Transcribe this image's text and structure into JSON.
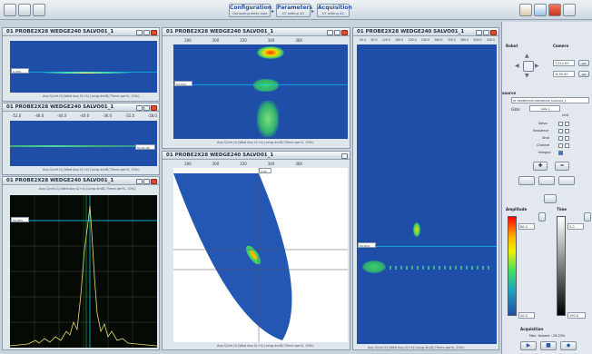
{
  "toolbar": {
    "wizards": [
      {
        "title": "Configuration",
        "subtitle": "Computing delay laws"
      },
      {
        "title": "Parameters",
        "subtitle": "UT setting #1"
      },
      {
        "title": "Acquisition",
        "subtitle": "UT setting #1"
      }
    ]
  },
  "panels": {
    "p1": {
      "title": "01 PROBE2X28 WEDGE240 SALVO01_1",
      "marker": "0.20%",
      "caption": "Acq C(mV,0) (Wed Acq C(+4) (Leng 4mlD,75mm per%, 10%)"
    },
    "p2": {
      "title": "01 PROBE2X28 WEDGE240 SALVO01_1",
      "ticks": [
        "-52.0",
        "-48.0",
        "-44.0",
        "-40.0",
        "-36.0",
        "-32.0",
        "-28.0"
      ],
      "marker": "50.00 dB",
      "caption": "Acq C(mV,0) (Wed Acq C(+4) (Leng 4mlD,75mm per%, 10%)"
    },
    "p3": {
      "title": "01 PROBE2X28 WEDGE240 SALVO01_1",
      "marker": "50.00%",
      "caption": "Acq C(mV,0) (Wed Acq C(+4) (Leng 4mlD,75mm per%, 10%)"
    },
    "p4": {
      "title": "01 PROBE2X28 WEDGE240 SALVO01_1",
      "xticks": [
        "280",
        "300",
        "320",
        "340",
        "360"
      ],
      "marker": "50.00%",
      "caption": "Acq C(mV,0) (Wed Acq C(+4) (Leng 4mlD,75mm per%, 10%)"
    },
    "p5": {
      "title": "01 PROBE2X28 WEDGE240 SALVO01_1",
      "xticks": [
        "280",
        "300",
        "320",
        "340",
        "360"
      ],
      "marker": "0.00",
      "caption": "Acq C(mV,0) (Wed Acq C(+4) (Leng 4mlD,75mm per%, 10%)"
    },
    "p6": {
      "title": "01 PROBE2X28 WEDGE240 SALVO01_1",
      "xticks": [
        "-40.0",
        "80.0",
        "120.0",
        "160.0",
        "200.0",
        "240.0",
        "280.0",
        "320.0",
        "360.0",
        "400.0",
        "440.0"
      ],
      "marker": "50.00%",
      "caption": "Acq C(mV,0) (Wed Acq C(+4) (Leng 4mlD,75mm per%, 10%)"
    }
  },
  "right_panel": {
    "robot_label": "Robot",
    "camera_label": "Camera",
    "cam_x": "7,212.00",
    "cam_y": "-6,92.00",
    "set_label": "set",
    "source_label": "source",
    "source_value": "01 PROBE2X28 WEDGE240 SALVO01_1",
    "gate_label": "Gate",
    "gate_value": "Gate 1",
    "unit_label": "Unit",
    "checks": [
      {
        "label": "Salvo",
        "checked": false
      },
      {
        "label": "Sequence",
        "checked": false
      },
      {
        "label": "Shot",
        "checked": false
      },
      {
        "label": "Channel",
        "checked": false
      },
      {
        "label": "Integral",
        "checked": true
      }
    ],
    "amplitude_label": "Amplitude",
    "time_label": "Time",
    "amp_max": "80.0",
    "amp_min": "20.0",
    "time_max": "0.0",
    "time_min": "100.0",
    "acquisition_label": "Acquisition",
    "max_volume": "Max. Volume : 29.23%"
  },
  "colors": {
    "accent": "#1f4ea8",
    "scan_bg": "#2456b3",
    "ascan_bg": "#050a05"
  }
}
